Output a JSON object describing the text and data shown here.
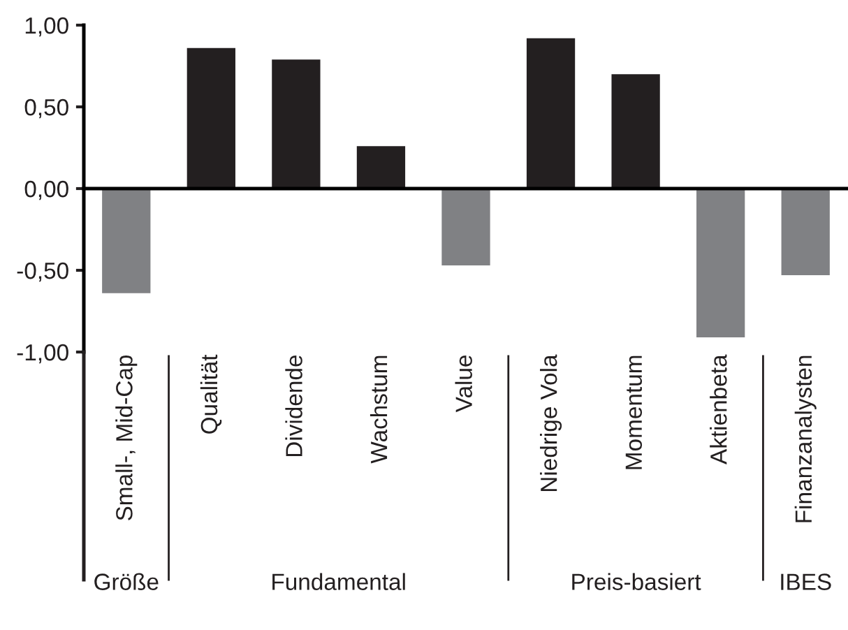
{
  "chart_data": {
    "type": "bar",
    "categories": [
      "Small-, Mid-Cap",
      "Qualität",
      "Dividende",
      "Wachstum",
      "Value",
      "Niedrige Vola",
      "Momentum",
      "Aktienbeta",
      "Finanzanalysten"
    ],
    "values": [
      -0.64,
      0.86,
      0.79,
      0.26,
      -0.47,
      0.92,
      0.7,
      -0.91,
      -0.53
    ],
    "colors": [
      "#808184",
      "#231f20",
      "#231f20",
      "#231f20",
      "#808184",
      "#231f20",
      "#231f20",
      "#808184",
      "#808184"
    ],
    "ylim": [
      -1.0,
      1.0
    ],
    "yticks": [
      {
        "value": -1.0,
        "label": "-1,00"
      },
      {
        "value": -0.5,
        "label": "-0,50"
      },
      {
        "value": 0.0,
        "label": "0,00"
      },
      {
        "value": 0.5,
        "label": "0,50"
      },
      {
        "value": 1.0,
        "label": "1,00"
      }
    ],
    "legend": false,
    "annotations": [
      "Größe",
      "Fundamental",
      "Preis-basiert",
      "IBES"
    ]
  }
}
